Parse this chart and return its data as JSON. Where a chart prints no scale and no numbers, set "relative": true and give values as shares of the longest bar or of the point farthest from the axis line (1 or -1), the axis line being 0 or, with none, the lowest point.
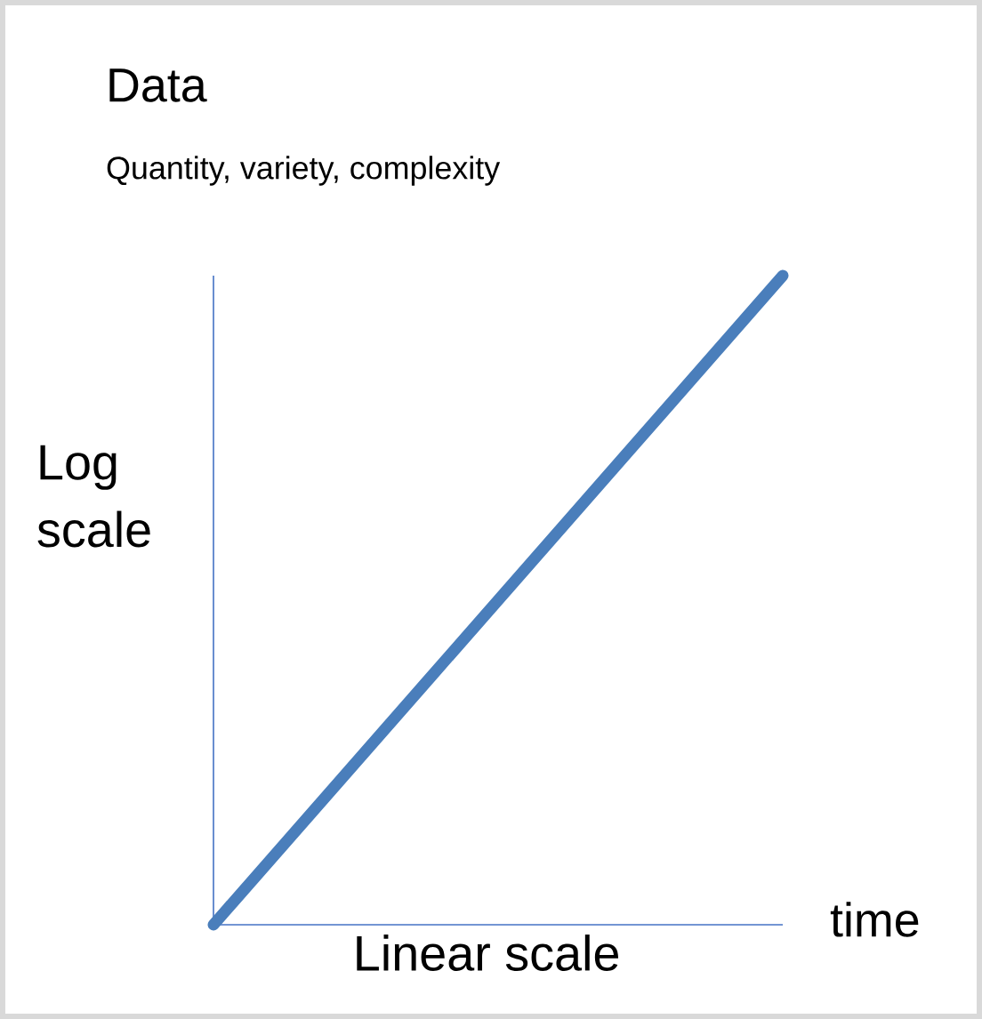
{
  "chart_data": {
    "type": "line",
    "title": "Data",
    "subtitle": "Quantity, variety, complexity",
    "xlabel": "Linear scale",
    "ylabel": "Log scale",
    "annotations": [
      "time"
    ],
    "categories": [
      null,
      null
    ],
    "relative": true,
    "series": [
      {
        "color": "#4a7ebb",
        "values": [
          0,
          1
        ]
      }
    ]
  }
}
